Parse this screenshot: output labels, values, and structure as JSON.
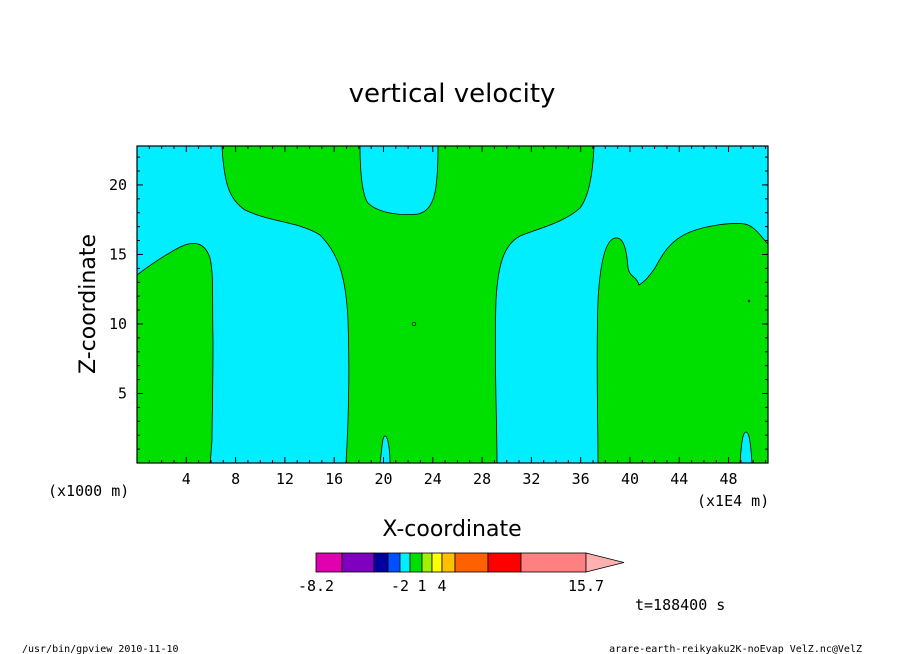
{
  "chart_data": {
    "type": "contour",
    "title": "vertical velocity",
    "xlabel": "X-coordinate",
    "ylabel": "Z-coordinate",
    "x_unit_left": "(x1000 m)",
    "x_unit_right": "(x1E4 m)",
    "xlim": [
      0,
      51.2
    ],
    "ylim": [
      0,
      22.8
    ],
    "x_ticks": [
      4,
      8,
      12,
      16,
      20,
      24,
      28,
      32,
      36,
      40,
      44,
      48
    ],
    "y_ticks": [
      5,
      10,
      15,
      20
    ],
    "fill_regions": [
      {
        "name": "positive",
        "color": "#00e000"
      },
      {
        "name": "negative",
        "color": "#00eeff"
      }
    ],
    "colorbar": {
      "tick_labels": [
        "-8.2",
        "-2",
        "1",
        "4",
        "15.7"
      ],
      "colors": [
        "#e000b0",
        "#8000c0",
        "#0000a0",
        "#0050ff",
        "#00eeff",
        "#00e000",
        "#a0f000",
        "#ffff00",
        "#ffc000",
        "#ff6000",
        "#ff0000",
        "#ff8080"
      ]
    },
    "time_label": "t=188400 s"
  },
  "footer": {
    "left": "/usr/bin/gpview  2010-11-10",
    "right": "arare-earth-reikyaku2K-noEvap_VelZ.nc@VelZ"
  }
}
